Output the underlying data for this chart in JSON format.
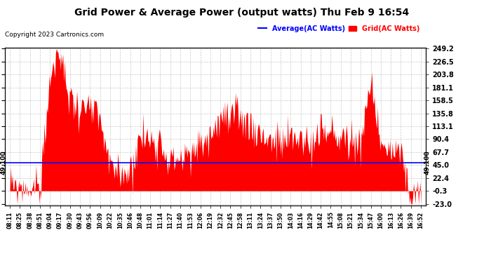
{
  "title": "Grid Power & Average Power (output watts) Thu Feb 9 16:54",
  "copyright": "Copyright 2023 Cartronics.com",
  "average_label": "Average(AC Watts)",
  "grid_label": "Grid(AC Watts)",
  "average_value": 49.1,
  "average_annotation": "49.100",
  "ymin": -23.0,
  "ymax": 249.2,
  "yticks": [
    249.2,
    226.5,
    203.8,
    181.1,
    158.5,
    135.8,
    113.1,
    90.4,
    67.7,
    45.0,
    22.4,
    -0.3,
    -23.0
  ],
  "xtick_labels": [
    "08:11",
    "08:25",
    "08:38",
    "08:51",
    "09:04",
    "09:17",
    "09:30",
    "09:43",
    "09:56",
    "10:09",
    "10:22",
    "10:35",
    "10:46",
    "10:48",
    "11:01",
    "11:14",
    "11:27",
    "11:40",
    "11:53",
    "12:06",
    "12:19",
    "12:32",
    "12:45",
    "12:58",
    "13:11",
    "13:24",
    "13:37",
    "13:50",
    "14:03",
    "14:16",
    "14:29",
    "14:42",
    "14:55",
    "15:08",
    "15:21",
    "15:34",
    "15:47",
    "16:00",
    "16:13",
    "16:26",
    "16:39",
    "16:52"
  ],
  "background_color": "#ffffff",
  "plot_bg_color": "#ffffff",
  "grid_color": "#bbbbbb",
  "bar_color": "#ff0000",
  "line_color": "#0000ff",
  "title_color": "#000000",
  "copyright_color": "#000000",
  "average_legend_color": "#0000ff",
  "grid_legend_color": "#ff0000",
  "grid_values": [
    5,
    5,
    5,
    5,
    200,
    240,
    160,
    145,
    140,
    120,
    35,
    35,
    35,
    95,
    90,
    90,
    50,
    60,
    55,
    85,
    95,
    130,
    120,
    130,
    115,
    100,
    90,
    80,
    90,
    95,
    80,
    100,
    100,
    95,
    85,
    90,
    185,
    90,
    65,
    65,
    -15,
    -20
  ]
}
